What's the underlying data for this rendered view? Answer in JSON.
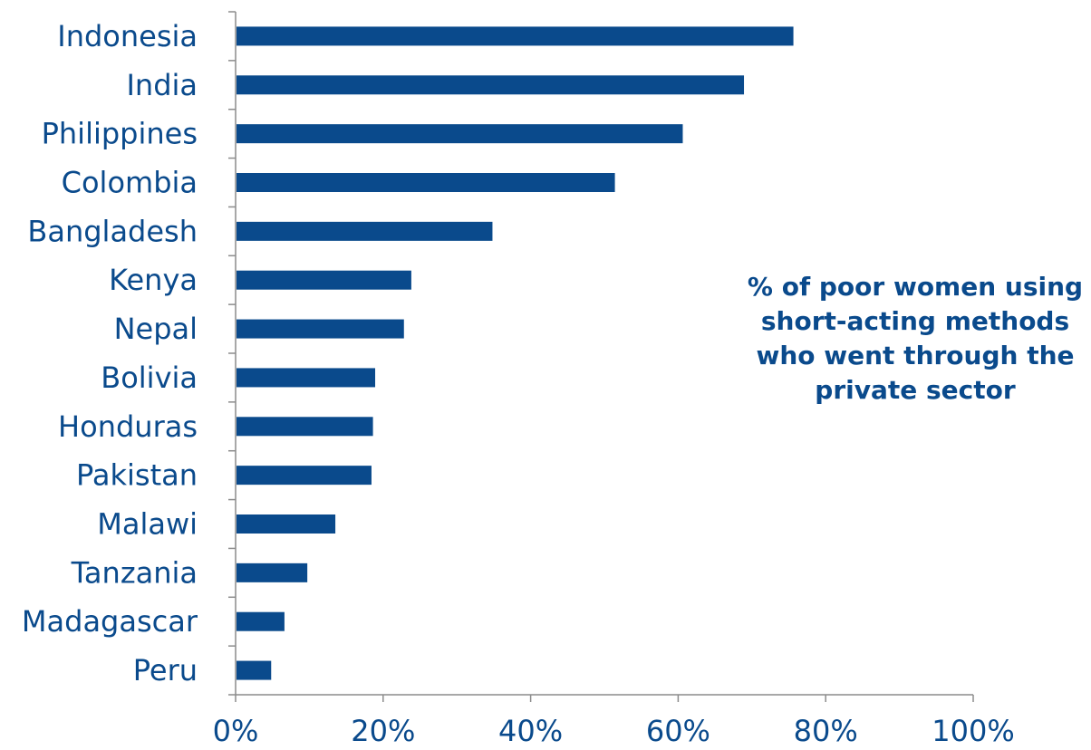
{
  "chart_data": {
    "type": "bar",
    "orientation": "horizontal",
    "categories": [
      "Indonesia",
      "India",
      "Philippines",
      "Colombia",
      "Bangladesh",
      "Kenya",
      "Nepal",
      "Bolivia",
      "Honduras",
      "Pakistan",
      "Malawi",
      "Tanzania",
      "Madagascar",
      "Peru"
    ],
    "values": [
      0.755,
      0.688,
      0.605,
      0.513,
      0.347,
      0.237,
      0.227,
      0.188,
      0.185,
      0.183,
      0.134,
      0.096,
      0.065,
      0.047
    ],
    "xlim": [
      0,
      1
    ],
    "x_ticks": [
      0,
      0.2,
      0.4,
      0.6,
      0.8,
      1.0
    ],
    "x_tick_labels": [
      "0%",
      "20%",
      "40%",
      "60%",
      "80%",
      "100%"
    ],
    "annotation": "% of poor women using short-acting methods who went through the private sector",
    "bar_color": "#0a4a8c",
    "text_color": "#0a4a8c",
    "grid": false
  }
}
